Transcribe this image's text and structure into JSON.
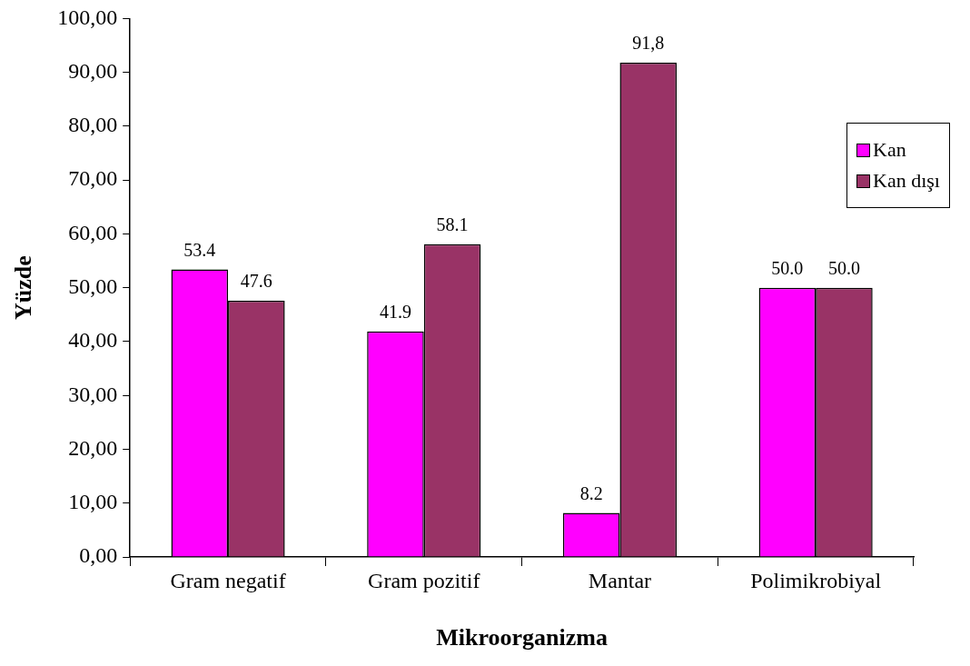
{
  "chart_data": {
    "type": "bar",
    "xlabel": "Mikroorganizma",
    "ylabel": "Yüzde",
    "categories": [
      "Gram negatif",
      "Gram pozitif",
      "Mantar",
      "Polimikrobiyal"
    ],
    "series": [
      {
        "name": "Kan",
        "color": "#ff00ff",
        "values": [
          53.4,
          41.9,
          8.2,
          50.0
        ],
        "value_labels": [
          "53.4",
          "41.9",
          "8.2",
          "50.0"
        ]
      },
      {
        "name": "Kan dışı",
        "color": "#993366",
        "values": [
          47.6,
          58.1,
          91.8,
          50.0
        ],
        "value_labels": [
          "47.6",
          "58.1",
          "91,8",
          "50.0"
        ]
      }
    ],
    "ylim": [
      0,
      100
    ],
    "yticks": [
      {
        "value": 0,
        "label": "0,00"
      },
      {
        "value": 10,
        "label": "10,00"
      },
      {
        "value": 20,
        "label": "20,00"
      },
      {
        "value": 30,
        "label": "30,00"
      },
      {
        "value": 40,
        "label": "40,00"
      },
      {
        "value": 50,
        "label": "50,00"
      },
      {
        "value": 60,
        "label": "60,00"
      },
      {
        "value": 70,
        "label": "70,00"
      },
      {
        "value": 80,
        "label": "80,00"
      },
      {
        "value": 90,
        "label": "90,00"
      },
      {
        "value": 100,
        "label": "100,00"
      }
    ],
    "grid": false,
    "legend": "right"
  }
}
